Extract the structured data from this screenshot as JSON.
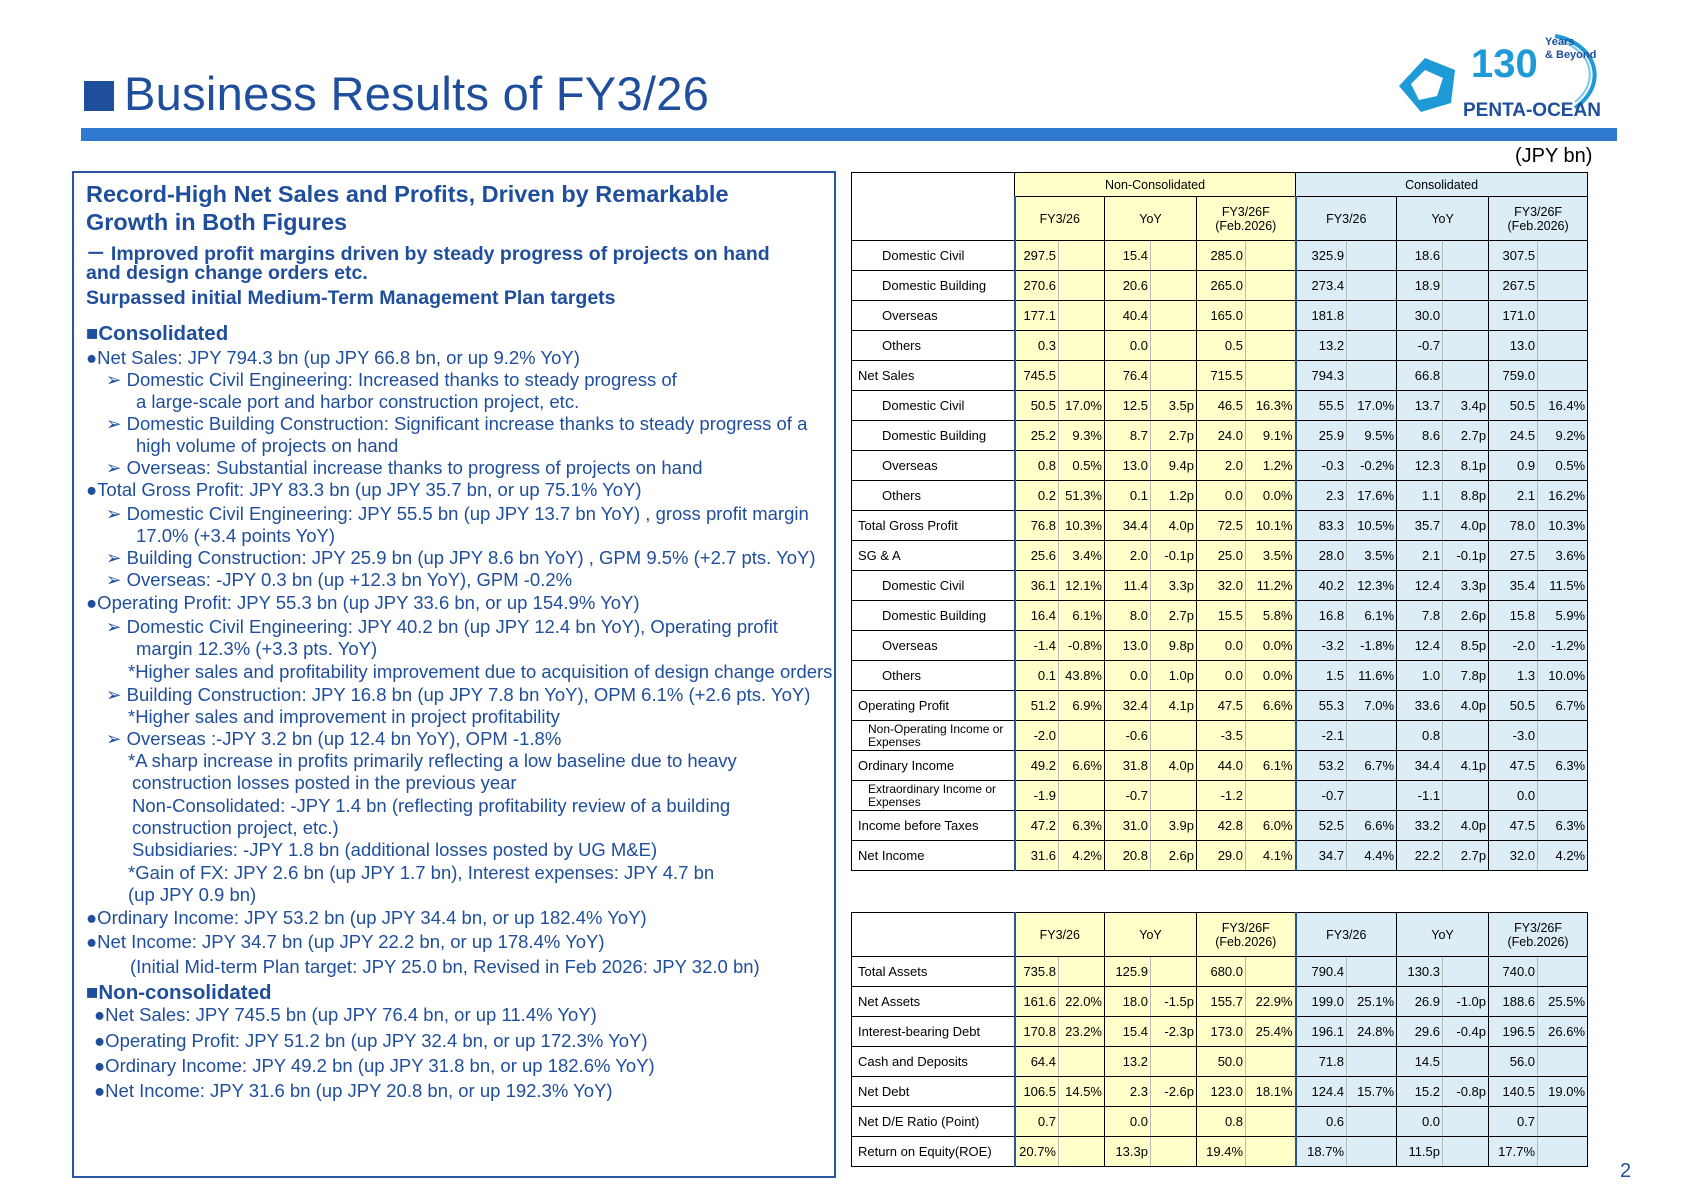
{
  "header": {
    "title": "Business Results of FY3/26",
    "unit": "(JPY bn)",
    "page_number": "2"
  },
  "logo": {
    "number": "130",
    "tag1": "Years",
    "tag2": "& Beyond",
    "company": "PENTA-OCEAN"
  },
  "summary": {
    "lines": [
      {
        "text": "Record-High Net Sales and Profits, Driven by Remarkable",
        "cls": "h1",
        "x": 12,
        "y": 0
      },
      {
        "text": "Growth in Both Figures",
        "cls": "h1",
        "x": 12,
        "y": 28
      },
      {
        "text": "－ Improved profit margins driven by steady progress of projects on hand",
        "cls": "h2",
        "x": 12,
        "y": 56
      },
      {
        "text": "and design change orders etc.",
        "cls": "h2",
        "x": 12,
        "y": 81
      },
      {
        "text": "Surpassed initial Medium-Term Management Plan targets",
        "cls": "h2",
        "x": 12,
        "y": 106
      },
      {
        "text": "■Consolidated",
        "cls": "sec",
        "x": 12,
        "y": 141
      },
      {
        "text": "●Net Sales: JPY 794.3 bn (up JPY 66.8 bn, or up 9.2% YoY)",
        "cls": "",
        "x": 12,
        "y": 166
      },
      {
        "text": "➢  Domestic Civil Engineering: Increased thanks to steady progress of",
        "cls": "",
        "x": 32,
        "y": 188
      },
      {
        "text": "a large-scale port and harbor construction project, etc.",
        "cls": "",
        "x": 62,
        "y": 210
      },
      {
        "text": "➢  Domestic Building Construction: Significant increase thanks to steady progress of  a",
        "cls": "",
        "x": 32,
        "y": 232
      },
      {
        "text": "high volume of projects on hand",
        "cls": "",
        "x": 62,
        "y": 254
      },
      {
        "text": "➢  Overseas: Substantial increase thanks to progress of projects on hand",
        "cls": "",
        "x": 32,
        "y": 276
      },
      {
        "text": "●Total Gross Profit: JPY 83.3 bn (up JPY 35.7 bn, or up 75.1% YoY)",
        "cls": "",
        "x": 12,
        "y": 298
      },
      {
        "text": "➢  Domestic Civil Engineering: JPY 55.5 bn (up JPY 13.7 bn YoY) , gross profit margin",
        "cls": "",
        "x": 32,
        "y": 322
      },
      {
        "text": "17.0% (+3.4 points YoY)",
        "cls": "",
        "x": 62,
        "y": 344
      },
      {
        "text": "➢  Building Construction: JPY 25.9 bn (up JPY 8.6 bn YoY) , GPM 9.5% (+2.7 pts. YoY)",
        "cls": "",
        "x": 32,
        "y": 366
      },
      {
        "text": "➢  Overseas: -JPY 0.3 bn (up +12.3 bn YoY), GPM -0.2%",
        "cls": "",
        "x": 32,
        "y": 388
      },
      {
        "text": "●Operating Profit: JPY 55.3 bn (up JPY 33.6 bn, or up 154.9% YoY)",
        "cls": "",
        "x": 12,
        "y": 411
      },
      {
        "text": "➢  Domestic Civil Engineering: JPY 40.2 bn (up JPY 12.4 bn YoY), Operating profit",
        "cls": "",
        "x": 32,
        "y": 435
      },
      {
        "text": "margin 12.3% (+3.3 pts. YoY)",
        "cls": "",
        "x": 62,
        "y": 457
      },
      {
        "text": "*Higher sales and profitability improvement due to acquisition of design change orders",
        "cls": "",
        "x": 54,
        "y": 480
      },
      {
        "text": "➢  Building Construction: JPY 16.8 bn (up JPY 7.8 bn YoY), OPM 6.1%  (+2.6 pts. YoY)",
        "cls": "",
        "x": 32,
        "y": 503
      },
      {
        "text": "*Higher sales and improvement in project profitability",
        "cls": "",
        "x": 54,
        "y": 525
      },
      {
        "text": "➢  Overseas :-JPY 3.2 bn (up 12.4 bn YoY), OPM -1.8%",
        "cls": "",
        "x": 32,
        "y": 547
      },
      {
        "text": "*A sharp increase in profits primarily reflecting a low baseline due to heavy",
        "cls": "",
        "x": 54,
        "y": 569
      },
      {
        "text": "construction losses posted in the previous year",
        "cls": "",
        "x": 58,
        "y": 591
      },
      {
        "text": "Non-Consolidated:  -JPY 1.4 bn  (reflecting profitability review of a building",
        "cls": "",
        "x": 58,
        "y": 614
      },
      {
        "text": "construction project, etc.)",
        "cls": "",
        "x": 58,
        "y": 636
      },
      {
        "text": "Subsidiaries: -JPY 1.8 bn (additional losses posted by UG M&E)",
        "cls": "",
        "x": 58,
        "y": 658
      },
      {
        "text": "*Gain of FX: JPY 2.6 bn (up JPY  1.7 bn), Interest expenses: JPY 4.7 bn",
        "cls": "",
        "x": 54,
        "y": 681
      },
      {
        "text": "(up JPY 0.9 bn)",
        "cls": "",
        "x": 54,
        "y": 703
      },
      {
        "text": "●Ordinary Income: JPY 53.2 bn (up JPY 34.4 bn, or up 182.4% YoY)",
        "cls": "",
        "x": 12,
        "y": 726
      },
      {
        "text": "●Net Income: JPY 34.7 bn (up JPY 22.2 bn, or up 178.4% YoY)",
        "cls": "",
        "x": 12,
        "y": 750
      },
      {
        "text": "(Initial Mid-term Plan target: JPY 25.0 bn, Revised in Feb 2026: JPY 32.0 bn)",
        "cls": "",
        "x": 56,
        "y": 775
      },
      {
        "text": "■Non-consolidated",
        "cls": "sec",
        "x": 12,
        "y": 800
      },
      {
        "text": "●Net Sales: JPY 745.5 bn (up JPY 76.4 bn, or up 11.4% YoY)",
        "cls": "",
        "x": 20,
        "y": 823
      },
      {
        "text": "●Operating Profit: JPY 51.2 bn (up JPY 32.4 bn, or up 172.3% YoY)",
        "cls": "",
        "x": 20,
        "y": 849
      },
      {
        "text": "●Ordinary Income: JPY 49.2 bn (up JPY 31.8 bn, or up 182.6% YoY)",
        "cls": "",
        "x": 20,
        "y": 874
      },
      {
        "text": "●Net Income: JPY 31.6 bn (up JPY 20.8 bn, or up 192.3% YoY)",
        "cls": "",
        "x": 20,
        "y": 899
      }
    ]
  },
  "table1": {
    "group_headers": {
      "non_consolidated": "Non-Consolidated",
      "consolidated": "Consolidated"
    },
    "col_headers": [
      "FY3/26",
      "YoY",
      "FY3/26F (Feb.2026)",
      "FY3/26",
      "YoY",
      "FY3/26F (Feb.2026)"
    ],
    "rows": [
      {
        "label": "Domestic Civil",
        "indent": true,
        "cells": [
          "297.5",
          "",
          "15.4",
          "",
          "285.0",
          "",
          "325.9",
          "",
          "18.6",
          "",
          "307.5",
          ""
        ]
      },
      {
        "label": "Domestic Building",
        "indent": true,
        "cells": [
          "270.6",
          "",
          "20.6",
          "",
          "265.0",
          "",
          "273.4",
          "",
          "18.9",
          "",
          "267.5",
          ""
        ]
      },
      {
        "label": "Overseas",
        "indent": true,
        "cells": [
          "177.1",
          "",
          "40.4",
          "",
          "165.0",
          "",
          "181.8",
          "",
          "30.0",
          "",
          "171.0",
          ""
        ]
      },
      {
        "label": "Others",
        "indent": true,
        "cells": [
          "0.3",
          "",
          "0.0",
          "",
          "0.5",
          "",
          "13.2",
          "",
          "-0.7",
          "",
          "13.0",
          ""
        ]
      },
      {
        "label": "Net Sales",
        "indent": false,
        "cells": [
          "745.5",
          "",
          "76.4",
          "",
          "715.5",
          "",
          "794.3",
          "",
          "66.8",
          "",
          "759.0",
          ""
        ]
      },
      {
        "label": "Domestic Civil",
        "indent": true,
        "cells": [
          "50.5",
          "17.0%",
          "12.5",
          "3.5p",
          "46.5",
          "16.3%",
          "55.5",
          "17.0%",
          "13.7",
          "3.4p",
          "50.5",
          "16.4%"
        ]
      },
      {
        "label": "Domestic Building",
        "indent": true,
        "cells": [
          "25.2",
          "9.3%",
          "8.7",
          "2.7p",
          "24.0",
          "9.1%",
          "25.9",
          "9.5%",
          "8.6",
          "2.7p",
          "24.5",
          "9.2%"
        ]
      },
      {
        "label": "Overseas",
        "indent": true,
        "cells": [
          "0.8",
          "0.5%",
          "13.0",
          "9.4p",
          "2.0",
          "1.2%",
          "-0.3",
          "-0.2%",
          "12.3",
          "8.1p",
          "0.9",
          "0.5%"
        ]
      },
      {
        "label": "Others",
        "indent": true,
        "cells": [
          "0.2",
          "51.3%",
          "0.1",
          "1.2p",
          "0.0",
          "0.0%",
          "2.3",
          "17.6%",
          "1.1",
          "8.8p",
          "2.1",
          "16.2%"
        ]
      },
      {
        "label": "Total Gross Profit",
        "indent": false,
        "cells": [
          "76.8",
          "10.3%",
          "34.4",
          "4.0p",
          "72.5",
          "10.1%",
          "83.3",
          "10.5%",
          "35.7",
          "4.0p",
          "78.0",
          "10.3%"
        ]
      },
      {
        "label": "SG & A",
        "indent": false,
        "cells": [
          "25.6",
          "3.4%",
          "2.0",
          "-0.1p",
          "25.0",
          "3.5%",
          "28.0",
          "3.5%",
          "2.1",
          "-0.1p",
          "27.5",
          "3.6%"
        ]
      },
      {
        "label": "Domestic Civil",
        "indent": true,
        "cells": [
          "36.1",
          "12.1%",
          "11.4",
          "3.3p",
          "32.0",
          "11.2%",
          "40.2",
          "12.3%",
          "12.4",
          "3.3p",
          "35.4",
          "11.5%"
        ]
      },
      {
        "label": "Domestic Building",
        "indent": true,
        "cells": [
          "16.4",
          "6.1%",
          "8.0",
          "2.7p",
          "15.5",
          "5.8%",
          "16.8",
          "6.1%",
          "7.8",
          "2.6p",
          "15.8",
          "5.9%"
        ]
      },
      {
        "label": "Overseas",
        "indent": true,
        "cells": [
          "-1.4",
          "-0.8%",
          "13.0",
          "9.8p",
          "0.0",
          "0.0%",
          "-3.2",
          "-1.8%",
          "12.4",
          "8.5p",
          "-2.0",
          "-1.2%"
        ]
      },
      {
        "label": "Others",
        "indent": true,
        "cells": [
          "0.1",
          "43.8%",
          "0.0",
          "1.0p",
          "0.0",
          "0.0%",
          "1.5",
          "11.6%",
          "1.0",
          "7.8p",
          "1.3",
          "10.0%"
        ]
      },
      {
        "label": "Operating Profit",
        "indent": false,
        "cells": [
          "51.2",
          "6.9%",
          "32.4",
          "4.1p",
          "47.5",
          "6.6%",
          "55.3",
          "7.0%",
          "33.6",
          "4.0p",
          "50.5",
          "6.7%"
        ]
      },
      {
        "label": "Non-Operating Income or Expenses",
        "indent": false,
        "two": true,
        "cells": [
          "-2.0",
          "",
          "-0.6",
          "",
          "-3.5",
          "",
          "-2.1",
          "",
          "0.8",
          "",
          "-3.0",
          ""
        ]
      },
      {
        "label": "Ordinary Income",
        "indent": false,
        "cells": [
          "49.2",
          "6.6%",
          "31.8",
          "4.0p",
          "44.0",
          "6.1%",
          "53.2",
          "6.7%",
          "34.4",
          "4.1p",
          "47.5",
          "6.3%"
        ]
      },
      {
        "label": "Extraordinary Income or Expenses",
        "indent": false,
        "two": true,
        "cells": [
          "-1.9",
          "",
          "-0.7",
          "",
          "-1.2",
          "",
          "-0.7",
          "",
          "-1.1",
          "",
          "0.0",
          ""
        ]
      },
      {
        "label": "Income before Taxes",
        "indent": false,
        "cells": [
          "47.2",
          "6.3%",
          "31.0",
          "3.9p",
          "42.8",
          "6.0%",
          "52.5",
          "6.6%",
          "33.2",
          "4.0p",
          "47.5",
          "6.3%"
        ]
      },
      {
        "label": "Net Income",
        "indent": false,
        "cells": [
          "31.6",
          "4.2%",
          "20.8",
          "2.6p",
          "29.0",
          "4.1%",
          "34.7",
          "4.4%",
          "22.2",
          "2.7p",
          "32.0",
          "4.2%"
        ]
      }
    ]
  },
  "table2": {
    "col_headers": [
      "FY3/26",
      "YoY",
      "FY3/26F (Feb.2026)",
      "FY3/26",
      "YoY",
      "FY3/26F (Feb.2026)"
    ],
    "rows": [
      {
        "label": "Total Assets",
        "cells": [
          "735.8",
          "",
          "125.9",
          "",
          "680.0",
          "",
          "790.4",
          "",
          "130.3",
          "",
          "740.0",
          ""
        ]
      },
      {
        "label": "Net Assets",
        "cells": [
          "161.6",
          "22.0%",
          "18.0",
          "-1.5p",
          "155.7",
          "22.9%",
          "199.0",
          "25.1%",
          "26.9",
          "-1.0p",
          "188.6",
          "25.5%"
        ]
      },
      {
        "label": "Interest-bearing Debt",
        "cells": [
          "170.8",
          "23.2%",
          "15.4",
          "-2.3p",
          "173.0",
          "25.4%",
          "196.1",
          "24.8%",
          "29.6",
          "-0.4p",
          "196.5",
          "26.6%"
        ]
      },
      {
        "label": "Cash and Deposits",
        "cells": [
          "64.4",
          "",
          "13.2",
          "",
          "50.0",
          "",
          "71.8",
          "",
          "14.5",
          "",
          "56.0",
          ""
        ]
      },
      {
        "label": "Net Debt",
        "cells": [
          "106.5",
          "14.5%",
          "2.3",
          "-2.6p",
          "123.0",
          "18.1%",
          "124.4",
          "15.7%",
          "15.2",
          "-0.8p",
          "140.5",
          "19.0%"
        ]
      },
      {
        "label": "Net D/E Ratio (Point)",
        "cells": [
          "0.7",
          "",
          "0.0",
          "",
          "0.8",
          "",
          "0.6",
          "",
          "0.0",
          "",
          "0.7",
          ""
        ]
      },
      {
        "label": "Return on Equity(ROE)",
        "cells": [
          "20.7%",
          "",
          "13.3p",
          "",
          "19.4%",
          "",
          "18.7%",
          "",
          "11.5p",
          "",
          "17.7%",
          ""
        ]
      }
    ]
  }
}
